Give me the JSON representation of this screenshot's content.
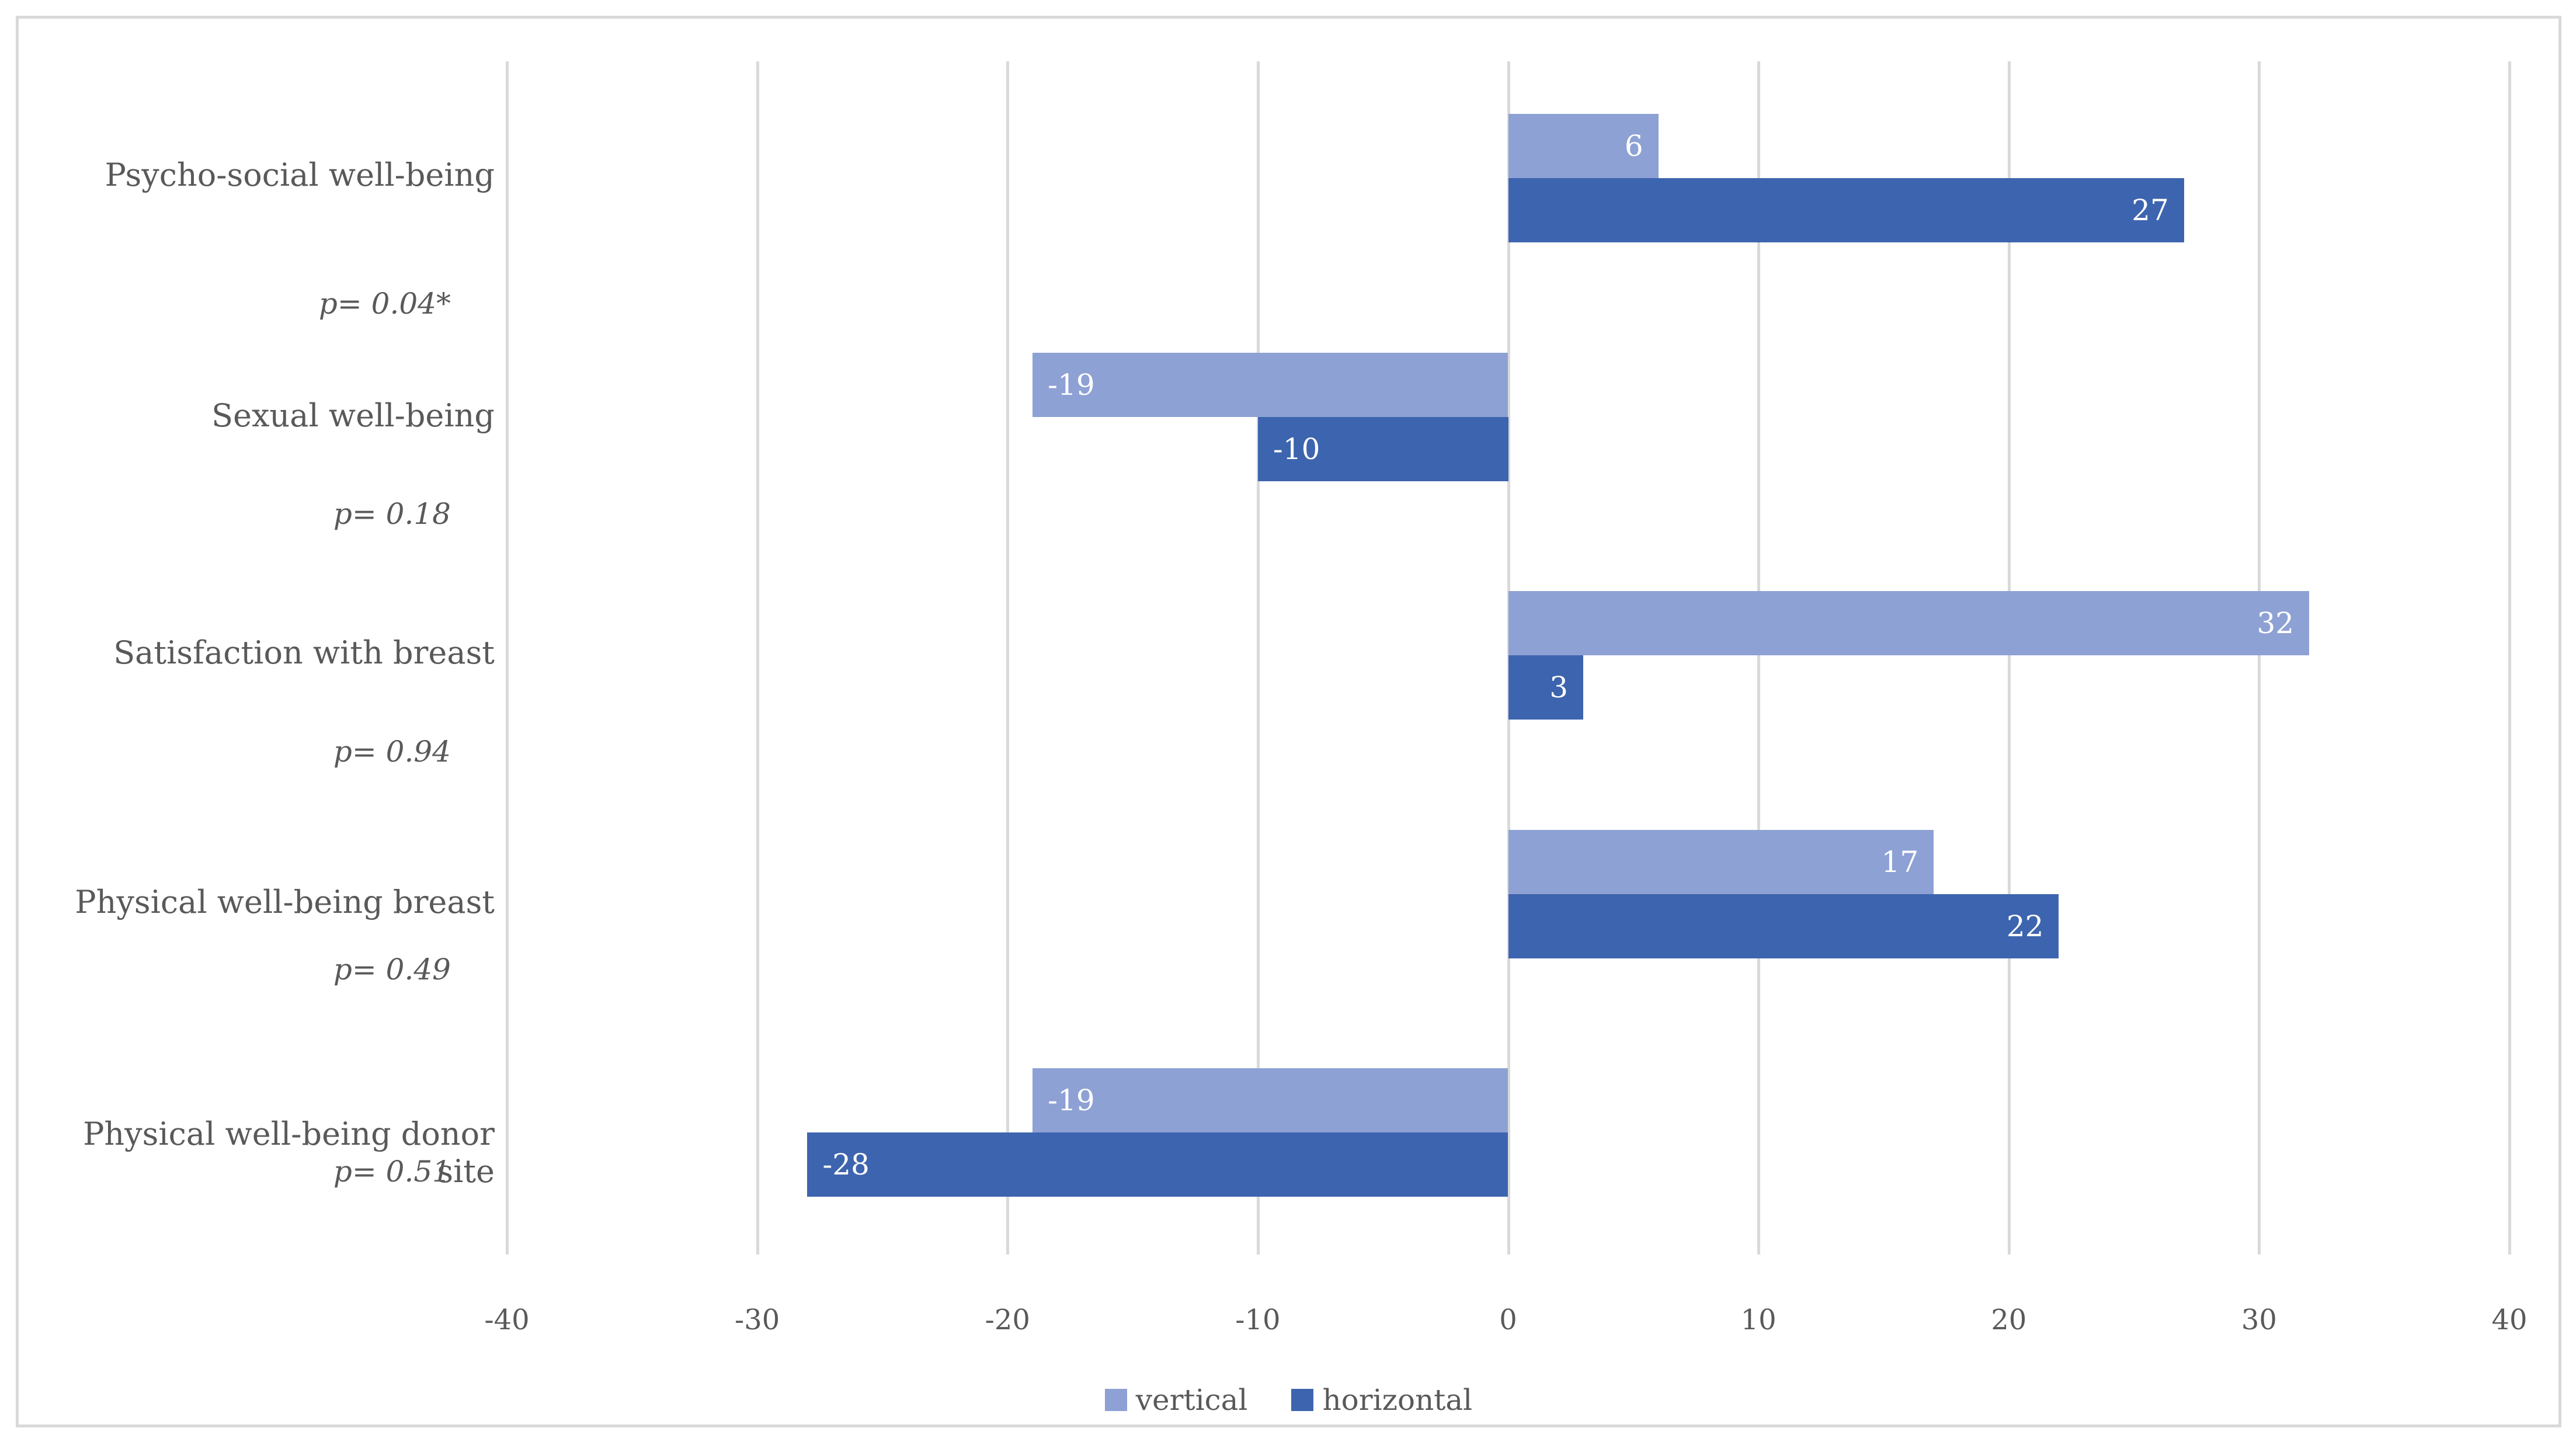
{
  "chart_data": {
    "type": "bar",
    "orientation": "horizontal",
    "title": "",
    "categories": [
      {
        "label": "Psycho-social well-being",
        "p_label": "p= 0.04*"
      },
      {
        "label": "Sexual well-being",
        "p_label": "p= 0.18"
      },
      {
        "label": "Satisfaction with breast",
        "p_label": "p= 0.94"
      },
      {
        "label": "Physical well-being breast",
        "p_label": "p= 0.49"
      },
      {
        "label": "Physical well-being donor site",
        "p_label": "p= 0.51"
      }
    ],
    "series": [
      {
        "name": "vertical",
        "color": "#8EA1D4",
        "values": [
          6,
          -19,
          32,
          17,
          -19
        ]
      },
      {
        "name": "horizontal",
        "color": "#3D64AE",
        "values": [
          27,
          -10,
          3,
          22,
          -28
        ]
      }
    ],
    "x_axis": {
      "min": -40,
      "max": 40,
      "step": 10,
      "tick_labels": [
        "-40",
        "-30",
        "-20",
        "-10",
        "0",
        "10",
        "20",
        "30",
        "40"
      ]
    },
    "grid": true,
    "legend_position": "bottom",
    "value_label_color": "#FFFFFF",
    "text_color": "#595959",
    "gridline_color": "#D9D9D9"
  }
}
